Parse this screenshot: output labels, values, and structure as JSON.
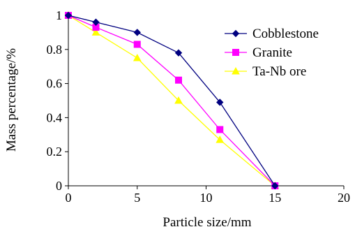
{
  "chart_data": {
    "type": "line",
    "xlabel": "Particle size/mm",
    "ylabel": "Mass percentage/%",
    "xlim": [
      0,
      20
    ],
    "ylim": [
      0,
      1
    ],
    "xticks": [
      "0",
      "5",
      "10",
      "15",
      "20"
    ],
    "yticks": [
      "0",
      "0.2",
      "0.4",
      "0.6",
      "0.8",
      "1"
    ],
    "grid": false,
    "legend_position": "top-right",
    "series": [
      {
        "name": "Cobblestone",
        "color": "#000080",
        "marker": "diamond",
        "x": [
          0,
          2,
          5,
          8,
          11,
          15
        ],
        "y": [
          1.0,
          0.96,
          0.9,
          0.78,
          0.49,
          0.0
        ]
      },
      {
        "name": "Granite",
        "color": "#FF00FF",
        "marker": "square",
        "x": [
          0,
          2,
          5,
          8,
          11,
          15
        ],
        "y": [
          1.0,
          0.93,
          0.83,
          0.62,
          0.33,
          0.0
        ]
      },
      {
        "name": "Ta-Nb ore",
        "color": "#FFFF00",
        "marker": "triangle",
        "x": [
          0,
          2,
          5,
          8,
          11,
          15
        ],
        "y": [
          1.0,
          0.9,
          0.75,
          0.5,
          0.27,
          0.0
        ]
      }
    ]
  }
}
